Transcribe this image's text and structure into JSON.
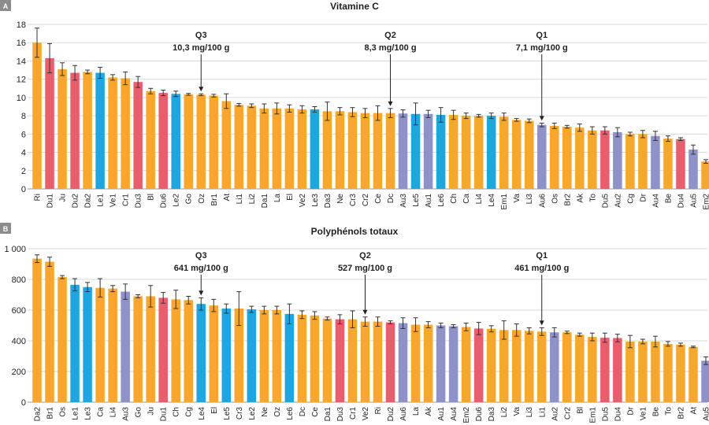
{
  "colors": {
    "orange": "#f8a72e",
    "red": "#e85e6c",
    "blue": "#1fa6df",
    "purple": "#8f91c9",
    "panel_label_bg": "#8c8c8c"
  },
  "chart_data": [
    {
      "type": "bar",
      "panel_label": "A",
      "title": "Vitamine C",
      "ylim": [
        0,
        18
      ],
      "yticks": [
        "0",
        "2",
        "4",
        "6",
        "8",
        "10",
        "12",
        "14",
        "16",
        "18"
      ],
      "grid": true,
      "categories": [
        "Ri",
        "Du1",
        "Ju",
        "Du2",
        "Da2",
        "Le1",
        "Ve1",
        "Cr1",
        "Du3",
        "Bl",
        "Du6",
        "Le2",
        "Go",
        "Oz",
        "Br1",
        "At",
        "Li1",
        "Li2",
        "Da1",
        "La",
        "El",
        "Ve2",
        "Le3",
        "Da3",
        "Ne",
        "Cr3",
        "Cr2",
        "Ce",
        "Dc",
        "Au3",
        "Le5",
        "Au1",
        "Le6",
        "Ch",
        "Ca",
        "Li4",
        "Le4",
        "Em1",
        "Va",
        "Li3",
        "Au6",
        "Os",
        "Br2",
        "Ak",
        "To",
        "Du5",
        "Au2",
        "Cg",
        "Dr",
        "Au4",
        "Be",
        "Du4",
        "Au5",
        "Em2"
      ],
      "values": [
        16.0,
        14.3,
        13.1,
        12.7,
        12.8,
        12.7,
        12.2,
        12.1,
        11.7,
        10.7,
        10.5,
        10.4,
        10.35,
        10.3,
        10.2,
        9.6,
        9.2,
        9.1,
        8.8,
        8.8,
        8.8,
        8.7,
        8.7,
        8.5,
        8.5,
        8.4,
        8.3,
        8.3,
        8.3,
        8.25,
        8.2,
        8.2,
        8.1,
        8.1,
        8.0,
        8.0,
        8.0,
        7.9,
        7.55,
        7.45,
        7.0,
        6.9,
        6.8,
        6.7,
        6.4,
        6.4,
        6.2,
        6.0,
        6.0,
        5.8,
        5.5,
        5.45,
        4.3,
        3.0
      ],
      "errors": [
        1.6,
        1.6,
        0.7,
        0.8,
        0.2,
        0.6,
        0.3,
        0.7,
        0.6,
        0.3,
        0.3,
        0.3,
        0.1,
        0.1,
        0.15,
        0.8,
        0.15,
        0.2,
        0.5,
        0.6,
        0.4,
        0.4,
        0.3,
        1.0,
        0.4,
        0.5,
        0.5,
        0.8,
        0.5,
        0.4,
        1.2,
        0.4,
        0.8,
        0.5,
        0.3,
        0.15,
        0.3,
        0.4,
        0.15,
        0.2,
        0.2,
        0.3,
        0.15,
        0.4,
        0.4,
        0.4,
        0.5,
        0.2,
        0.4,
        0.5,
        0.3,
        0.15,
        0.5,
        0.2
      ],
      "color_groups": [
        "orange",
        "red",
        "orange",
        "red",
        "orange",
        "blue",
        "orange",
        "orange",
        "red",
        "orange",
        "red",
        "blue",
        "orange",
        "orange",
        "orange",
        "orange",
        "orange",
        "orange",
        "orange",
        "orange",
        "orange",
        "orange",
        "blue",
        "orange",
        "orange",
        "orange",
        "orange",
        "orange",
        "orange",
        "purple",
        "blue",
        "purple",
        "blue",
        "orange",
        "orange",
        "orange",
        "blue",
        "orange",
        "orange",
        "orange",
        "purple",
        "orange",
        "orange",
        "orange",
        "orange",
        "red",
        "purple",
        "orange",
        "orange",
        "purple",
        "orange",
        "red",
        "purple",
        "orange"
      ],
      "quartiles": [
        {
          "label": "Q3",
          "value_text": "10,3 mg/100 g",
          "category": "Oz"
        },
        {
          "label": "Q2",
          "value_text": "8,3 mg/100 g",
          "category": "Dc"
        },
        {
          "label": "Q1",
          "value_text": "7,1 mg/100 g",
          "category": "Au6"
        }
      ]
    },
    {
      "type": "bar",
      "panel_label": "B",
      "title": "Polyphénols totaux",
      "ylim": [
        0,
        1000
      ],
      "yticks": [
        "0",
        "200",
        "400",
        "600",
        "800",
        "1 000"
      ],
      "grid": true,
      "categories": [
        "Da2",
        "Br1",
        "Os",
        "Le1",
        "Le3",
        "Ca",
        "Li4",
        "Au3",
        "Go",
        "Ju",
        "Du1",
        "Ch",
        "Cg",
        "Le4",
        "El",
        "Le5",
        "Cr3",
        "Le2",
        "Ne",
        "Oz",
        "Le6",
        "Dc",
        "Ce",
        "Da1",
        "Du3",
        "Cr1",
        "Ve2",
        "Ri",
        "Du2",
        "Au6",
        "La",
        "Ak",
        "Au1",
        "Au4",
        "Em2",
        "Du6",
        "Da3",
        "Li2",
        "Va",
        "Li3",
        "Li1",
        "Au2",
        "Cr2",
        "Bl",
        "Em1",
        "Du5",
        "Du4",
        "Dr",
        "Ve1",
        "Be",
        "To",
        "Br2",
        "At",
        "Au5"
      ],
      "values": [
        935,
        915,
        815,
        765,
        750,
        745,
        740,
        720,
        690,
        690,
        680,
        670,
        665,
        640,
        630,
        610,
        610,
        605,
        600,
        600,
        575,
        570,
        565,
        545,
        540,
        540,
        525,
        525,
        520,
        515,
        505,
        505,
        500,
        495,
        490,
        480,
        478,
        470,
        470,
        465,
        460,
        455,
        455,
        440,
        425,
        420,
        418,
        395,
        395,
        395,
        380,
        375,
        360,
        270
      ],
      "errors": [
        25,
        30,
        10,
        40,
        30,
        60,
        20,
        50,
        10,
        70,
        35,
        60,
        25,
        40,
        40,
        30,
        110,
        20,
        25,
        25,
        65,
        25,
        25,
        10,
        30,
        55,
        30,
        30,
        10,
        35,
        45,
        20,
        15,
        10,
        25,
        40,
        20,
        60,
        40,
        20,
        25,
        30,
        8,
        10,
        25,
        30,
        25,
        40,
        15,
        35,
        15,
        10,
        5,
        25
      ],
      "color_groups": [
        "orange",
        "orange",
        "orange",
        "blue",
        "blue",
        "orange",
        "orange",
        "purple",
        "orange",
        "orange",
        "red",
        "orange",
        "orange",
        "blue",
        "orange",
        "blue",
        "orange",
        "blue",
        "orange",
        "orange",
        "blue",
        "orange",
        "orange",
        "orange",
        "red",
        "orange",
        "orange",
        "orange",
        "red",
        "purple",
        "orange",
        "orange",
        "purple",
        "purple",
        "orange",
        "red",
        "orange",
        "orange",
        "orange",
        "orange",
        "orange",
        "purple",
        "orange",
        "orange",
        "orange",
        "red",
        "red",
        "orange",
        "orange",
        "orange",
        "orange",
        "orange",
        "orange",
        "purple"
      ],
      "quartiles": [
        {
          "label": "Q3",
          "value_text": "641 mg/100 g",
          "category": "Le4"
        },
        {
          "label": "Q2",
          "value_text": "527 mg/100 g",
          "category": "Ve2"
        },
        {
          "label": "Q1",
          "value_text": "461 mg/100 g",
          "category": "Li1"
        }
      ]
    }
  ]
}
